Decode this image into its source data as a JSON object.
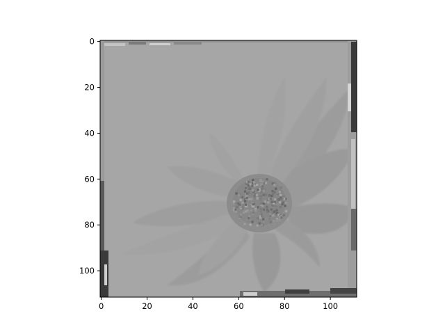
{
  "chart_data": {
    "type": "heatmap",
    "content": "grayscale image of a flower (daisy-like) shown with matplotlib imshow",
    "colormap": "gray",
    "image_shape": [
      112,
      112
    ],
    "xlim": [
      -0.5,
      111.5
    ],
    "ylim": [
      111.5,
      -0.5
    ],
    "x_ticks": [
      0,
      20,
      40,
      60,
      80,
      100
    ],
    "y_ticks": [
      0,
      20,
      40,
      60,
      80,
      100
    ],
    "x_tick_labels": [
      "0",
      "20",
      "40",
      "60",
      "80",
      "100"
    ],
    "y_tick_labels": [
      "0",
      "20",
      "40",
      "60",
      "80",
      "100"
    ],
    "title": "",
    "xlabel": "",
    "ylabel": "",
    "grid": false,
    "colors": {
      "background_gray": "#a6a6a6",
      "petal_gray": "#9e9e9e",
      "center_gray": "#8a8a8a",
      "edge_dark": "#3a3a3a",
      "edge_light": "#d0d0d0"
    }
  }
}
